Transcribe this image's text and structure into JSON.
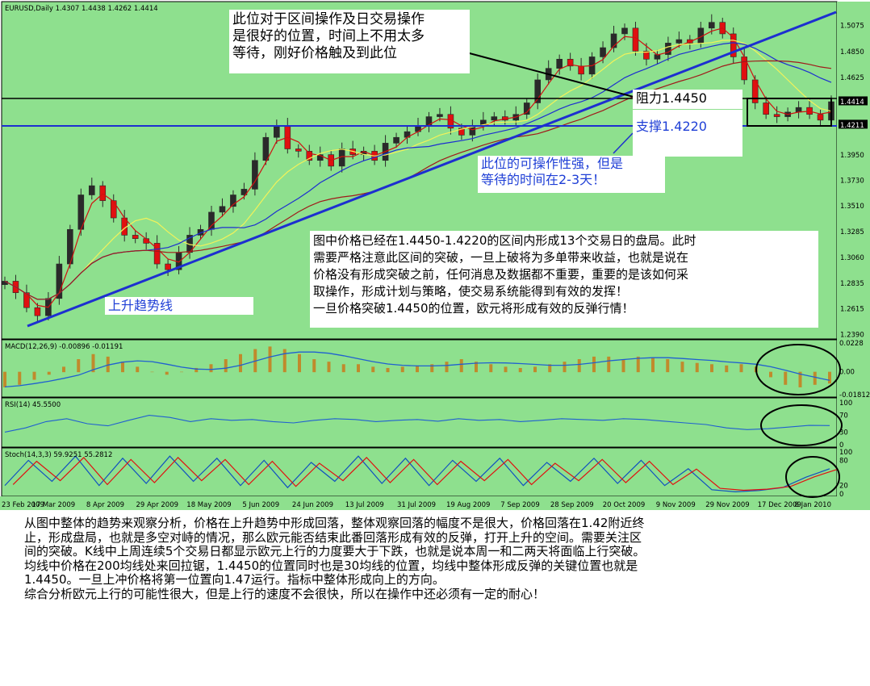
{
  "chart_data": [
    {
      "type": "candlestick",
      "title": "EURUSD,Daily",
      "ohlc_header": "1.4307 1.4438 1.4262 1.4414",
      "ylim": [
        1.239,
        1.521
      ],
      "price_ticks": [
        "1.5075",
        "1.4850",
        "1.4625",
        "1.4414",
        "1.4211",
        "1.3950",
        "1.3730",
        "1.3510",
        "1.3285",
        "1.3060",
        "1.2835",
        "1.2615",
        "1.2390"
      ],
      "x_ticks": [
        "23 Feb 2009",
        "17 Mar 2009",
        "8 Apr 2009",
        "29 Apr 2009",
        "18 May 2009",
        "5 Jun 2009",
        "24 Jun 2009",
        "13 Jul 2009",
        "31 Jul 2009",
        "19 Aug 2009",
        "7 Sep 2009",
        "28 Sep 2009",
        "20 Oct 2009",
        "9 Nov 2009",
        "29 Nov 2009",
        "17 Dec 2009",
        "8 Jan 2010"
      ],
      "close_series": [
        1.285,
        1.275,
        1.262,
        1.255,
        1.27,
        1.3,
        1.33,
        1.36,
        1.368,
        1.355,
        1.34,
        1.325,
        1.322,
        1.318,
        1.3,
        1.295,
        1.31,
        1.325,
        1.33,
        1.345,
        1.35,
        1.36,
        1.365,
        1.39,
        1.41,
        1.42,
        1.4,
        1.398,
        1.39,
        1.395,
        1.385,
        1.4,
        1.395,
        1.398,
        1.39,
        1.405,
        1.41,
        1.415,
        1.42,
        1.428,
        1.43,
        1.418,
        1.412,
        1.42,
        1.425,
        1.428,
        1.425,
        1.43,
        1.44,
        1.46,
        1.47,
        1.478,
        1.472,
        1.465,
        1.48,
        1.488,
        1.5,
        1.505,
        1.485,
        1.478,
        1.482,
        1.492,
        1.495,
        1.492,
        1.505,
        1.51,
        1.5,
        1.48,
        1.46,
        1.44,
        1.43,
        1.428,
        1.432,
        1.436,
        1.43,
        1.425,
        1.441
      ],
      "levels": [
        {
          "name": "阻力1.4450",
          "value": 1.445
        },
        {
          "name": "支撑1.4220",
          "value": 1.422
        },
        {
          "name": "1.4414",
          "value": 1.4414
        },
        {
          "name": "1.4211",
          "value": 1.4211
        }
      ],
      "trendline": {
        "name": "上升趋势线",
        "from": [
          "23 Feb 2009",
          1.252
        ],
        "to": [
          "8 Jan 2010",
          1.519
        ]
      }
    },
    {
      "type": "histogram",
      "title": "MACD(12,26,9) -0.00896 -0.01191",
      "ticks": [
        "0.0228",
        "0.00",
        "-0.01812"
      ],
      "ylim": [
        -0.01812,
        0.0228
      ],
      "values": [
        -0.012,
        -0.01,
        -0.006,
        -0.002,
        0.004,
        0.01,
        0.014,
        0.012,
        0.008,
        0.004,
        0.0,
        -0.002,
        0.0,
        0.003,
        0.006,
        0.01,
        0.014,
        0.018,
        0.02,
        0.018,
        0.014,
        0.01,
        0.008,
        0.006,
        0.006,
        0.004,
        0.003,
        0.004,
        0.005,
        0.006,
        0.008,
        0.01,
        0.008,
        0.006,
        0.004,
        0.003,
        0.004,
        0.006,
        0.008,
        0.01,
        0.012,
        0.012,
        0.01,
        0.012,
        0.011,
        0.01,
        0.008,
        0.007,
        0.006,
        0.005,
        0.006,
        0.004,
        -0.004,
        -0.01,
        -0.012,
        -0.01,
        -0.009
      ]
    },
    {
      "type": "line",
      "title": "RSI(14) 45.5500",
      "ticks": [
        "100",
        "70",
        "30",
        "0"
      ],
      "ylim": [
        0,
        100
      ],
      "values": [
        30,
        40,
        55,
        62,
        50,
        45,
        58,
        70,
        65,
        55,
        62,
        58,
        60,
        55,
        52,
        58,
        62,
        60,
        55,
        58,
        60,
        56,
        62,
        58,
        60,
        55,
        58,
        62,
        60,
        58,
        62,
        60,
        56,
        52,
        48,
        40,
        36,
        38,
        42,
        46,
        45.55
      ]
    },
    {
      "type": "line",
      "title": "Stoch(14,3,3) 59.9251 55.2812",
      "ticks": [
        "100",
        "80",
        "20",
        "0"
      ],
      "ylim": [
        0,
        100
      ],
      "values": [
        20,
        80,
        30,
        90,
        20,
        85,
        25,
        90,
        30,
        85,
        20,
        80,
        15,
        75,
        30,
        90,
        25,
        85,
        20,
        80,
        30,
        85,
        20,
        75,
        30,
        85,
        25,
        80,
        20,
        60,
        10,
        5,
        8,
        15,
        40,
        59.9251
      ]
    }
  ],
  "annotations": {
    "top_note": "此位对于区间操作及日交易操作\n是很好的位置，时间上不用太多\n等待，刚好价格触及到此位",
    "resistance_label": "阻力1.4450",
    "support_label": "支撑1.4220",
    "support_note": "此位的可操作性强，但是\n等待的时间在2-3天！",
    "range_note": "图中价格已经在1.4450-1.4220的区间内形成13个交易日的盘局。此时\n需要严格注意此区间的突破，一旦上破将为多单带来收益，也就是说在\n价格没有形成突破之前，任何消息及数据都不重要，重要的是该如何采\n取操作，形成计划与策略，使交易系统能得到有效的发挥！\n一旦价格突破1.4450的位置，欧元将形成有效的反弹行情！",
    "trend_label": "上升趋势线"
  },
  "analysis_text": "从图中整体的趋势来观察分析，价格在上升趋势中形成回落，整体观察回落的幅度不是很大，价格回落在1.42附近终\n止，形成盘局，也就是多空对峙的情况，那么欧元能否结束此番回落形成有效的反弹，打开上升的空间。需要关注区\n间的突破。K线中上周连续5个交易日都显示欧元上行的力度要大于下跌，也就是说本周一和二两天将面临上行突破。\n均线中价格在200均线处来回拉锯，1.4450的位置同时也是30均线的位置，均线中整体形成反弹的关键位置也就是\n1.4450。一旦上冲价格将第一位置向1.47运行。指标中整体形成向上的方向。\n综合分析欧元上行的可能性很大，但是上行的速度不会很快，所以在操作中还必须有一定的耐心！",
  "colors": {
    "panel_bg": "#8ee08e",
    "bull": "#2a2a2a",
    "bear": "#e01010",
    "trend_blue": "#1d2fd0",
    "macd_hist": "#c08a2c",
    "signal_line": "#2060d0",
    "stoch_main": "#1050c0",
    "stoch_sig": "#e01010"
  }
}
